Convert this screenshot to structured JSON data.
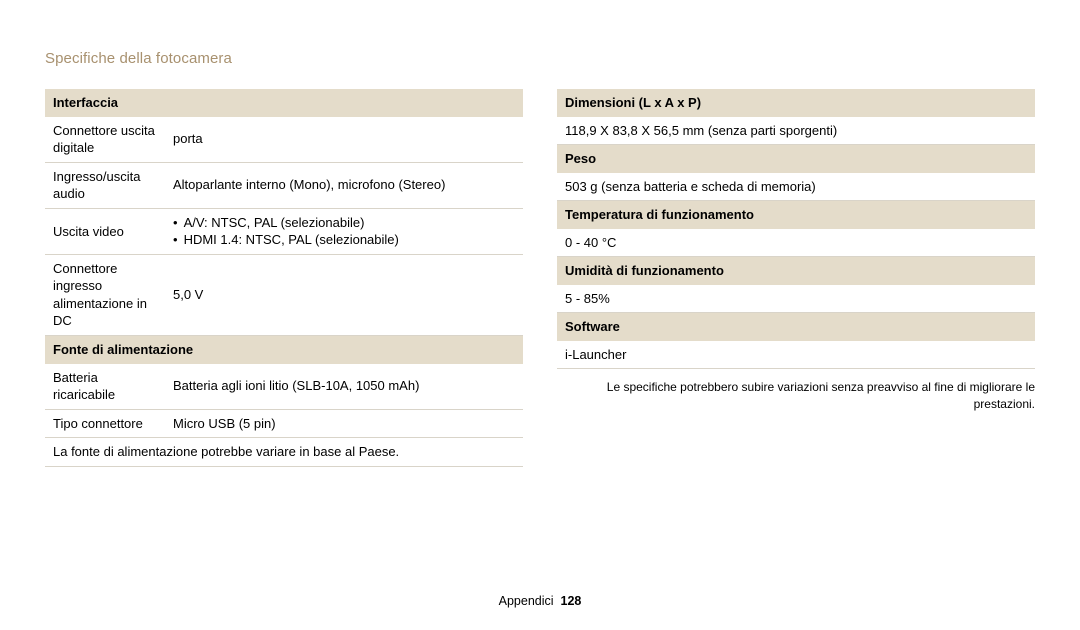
{
  "pageTitle": "Specifiche della fotocamera",
  "left": {
    "sections": [
      {
        "header": "Interfaccia",
        "rows": [
          {
            "label": "Connettore uscita digitale",
            "value": "porta"
          },
          {
            "label": "Ingresso/uscita audio",
            "value": "Altoparlante interno (Mono), microfono (Stereo)"
          },
          {
            "label": "Uscita video",
            "bullets": [
              "A/V: NTSC, PAL (selezionabile)",
              "HDMI 1.4: NTSC, PAL (selezionabile)"
            ]
          },
          {
            "label": "Connettore ingresso alimentazione in DC",
            "value": "5,0 V"
          }
        ]
      },
      {
        "header": "Fonte di alimentazione",
        "rows": [
          {
            "label": "Batteria ricaricabile",
            "value": "Batteria agli ioni litio (SLB-10A, 1050 mAh)"
          },
          {
            "label": "Tipo connettore",
            "value": "Micro USB (5 pin)"
          },
          {
            "full": "La fonte di alimentazione potrebbe variare in base al Paese."
          }
        ]
      }
    ]
  },
  "right": {
    "sections": [
      {
        "header": "Dimensioni (L x A x P)",
        "rows": [
          {
            "full": "118,9 X 83,8 X 56,5 mm (senza parti sporgenti)"
          }
        ]
      },
      {
        "header": "Peso",
        "rows": [
          {
            "full": "503 g (senza batteria e scheda di memoria)"
          }
        ]
      },
      {
        "header": "Temperatura di funzionamento",
        "rows": [
          {
            "full": "0 - 40 °C"
          }
        ]
      },
      {
        "header": "Umidità di funzionamento",
        "rows": [
          {
            "full": "5 - 85%"
          }
        ]
      },
      {
        "header": "Software",
        "rows": [
          {
            "full": "i-Launcher"
          }
        ]
      }
    ],
    "note": "Le specifiche potrebbero subire variazioni senza preavviso al fine di migliorare le prestazioni."
  },
  "footer": {
    "section": "Appendici",
    "page": "128"
  }
}
